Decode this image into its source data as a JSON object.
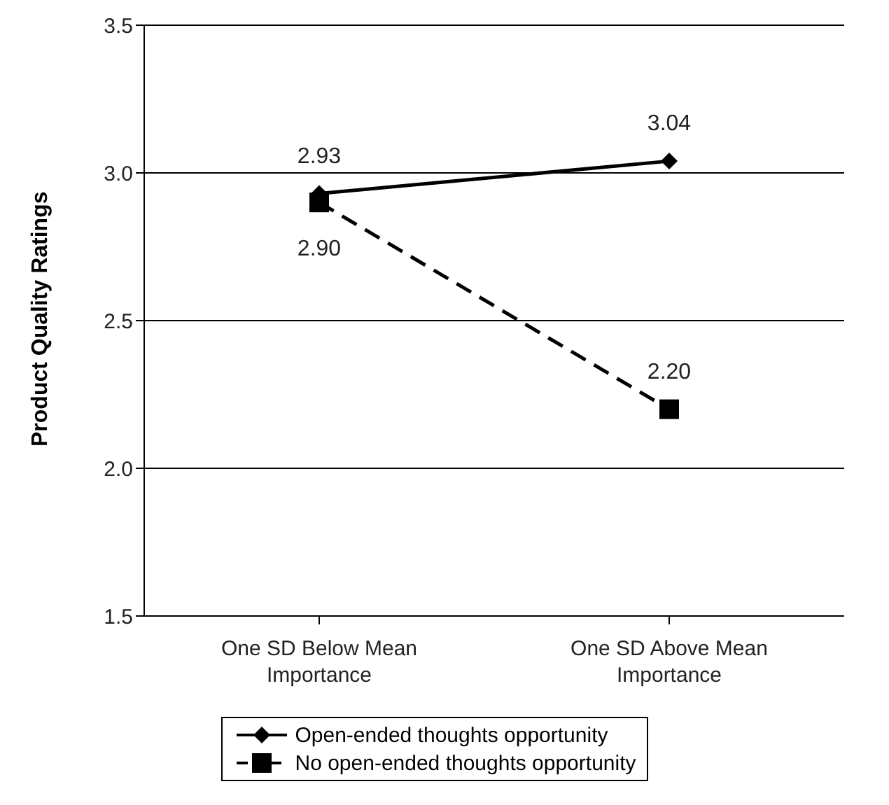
{
  "chart_data": {
    "type": "line",
    "ylabel": "Product Quality Ratings",
    "categories": [
      "One SD Below Mean Importance",
      "One SD Above Mean Importance"
    ],
    "series": [
      {
        "name": "Open-ended thoughts opportunity",
        "color": "#000000",
        "values": [
          2.93,
          3.04
        ],
        "value_labels": [
          "2.93",
          "3.04"
        ],
        "marker": "diamond",
        "line_style": "solid"
      },
      {
        "name": "No open-ended thoughts opportunity",
        "color": "#000000",
        "values": [
          2.9,
          2.2
        ],
        "value_labels": [
          "2.90",
          "2.20"
        ],
        "marker": "square",
        "line_style": "dashed"
      }
    ],
    "ylim": [
      1.5,
      3.5
    ],
    "yticks": [
      1.5,
      {
        "value": 2,
        "label": "2.0"
      },
      2.5,
      {
        "value": 3,
        "label": "3.0"
      },
      3.5
    ],
    "grid": "y",
    "legend": "bottom"
  }
}
